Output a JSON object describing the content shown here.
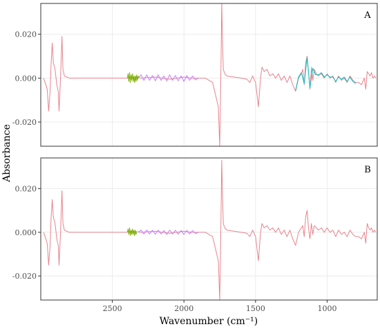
{
  "chart_data": [
    {
      "panel": "A",
      "type": "line",
      "xlabel": "Wavenumber (cm⁻¹)",
      "ylabel": "Absorbance",
      "x_reversed": true,
      "xlim": [
        3000,
        650
      ],
      "ylim": [
        -0.031,
        0.034
      ],
      "x_ticks": [
        2500,
        2000,
        1500,
        1000
      ],
      "x_tick_labels": [
        "2500",
        "2000",
        "1500",
        "1000"
      ],
      "y_ticks": [
        0.02,
        0.0,
        -0.02
      ],
      "y_tick_labels": [
        "0.020",
        "0.000",
        "-0.020"
      ],
      "grid": true,
      "series": [
        {
          "color": "#e8838d",
          "x": [
            2980,
            2965,
            2955,
            2945,
            2935,
            2928,
            2920,
            2912,
            2900,
            2888,
            2878,
            2872,
            2862,
            2852,
            2845,
            2835,
            2820,
            2800,
            2700,
            2500,
            2400,
            2350,
            2300,
            2200,
            2100,
            2000,
            1950,
            1900,
            1850,
            1800,
            1760,
            1750,
            1745,
            1740,
            1736,
            1730,
            1725,
            1715,
            1700,
            1650,
            1600,
            1560,
            1540,
            1520,
            1500,
            1480,
            1465,
            1455,
            1440,
            1420,
            1400,
            1380,
            1360,
            1340,
            1320,
            1300,
            1280,
            1260,
            1240,
            1220,
            1200,
            1180,
            1170,
            1160,
            1150,
            1140,
            1130,
            1120,
            1110,
            1100,
            1090,
            1075,
            1060,
            1040,
            1020,
            1000,
            980,
            960,
            940,
            920,
            900,
            880,
            860,
            840,
            820,
            800,
            780,
            760,
            740,
            730,
            720,
            710,
            700,
            690,
            680,
            670,
            660
          ],
          "y": [
            0.0,
            -0.003,
            -0.005,
            -0.015,
            -0.006,
            0.006,
            0.016,
            0.007,
            0.004,
            -0.003,
            -0.006,
            -0.015,
            0.0,
            0.019,
            0.004,
            0.001,
            0.0005,
            0.0,
            0.0,
            0.0,
            0.0,
            0.0005,
            0.0,
            0.0005,
            -0.0005,
            0.0005,
            0.0,
            0.0,
            0.0,
            -0.002,
            -0.013,
            -0.031,
            -0.01,
            0.012,
            0.034,
            0.015,
            0.004,
            0.002,
            0.001,
            0.0005,
            0.0,
            -0.0005,
            -0.002,
            0.001,
            -0.002,
            -0.013,
            0.0,
            0.005,
            0.003,
            0.004,
            0.001,
            0.002,
            0.0,
            0.002,
            -0.001,
            0.001,
            -0.002,
            0.001,
            -0.003,
            -0.006,
            0.0,
            0.002,
            0.004,
            -0.003,
            0.007,
            0.01,
            0.003,
            -0.005,
            0.005,
            -0.001,
            0.004,
            0.002,
            0.001,
            0.002,
            0.0,
            0.002,
            0.0,
            0.001,
            -0.002,
            0.001,
            -0.001,
            0.0,
            -0.002,
            0.001,
            -0.001,
            -0.002,
            -0.002,
            -0.003,
            0.0,
            -0.005,
            0.003,
            0.002,
            0.001,
            0.0025,
            0.0,
            0.001,
            0.0
          ]
        },
        {
          "color": "#7cae00",
          "x": [
            2395,
            2390,
            2385,
            2380,
            2375,
            2370,
            2365,
            2360,
            2355,
            2350,
            2345,
            2340,
            2335,
            2330,
            2325,
            2320,
            2315
          ],
          "y": [
            0.0,
            0.002,
            -0.0015,
            0.0025,
            -0.002,
            0.0015,
            -0.001,
            0.002,
            -0.0015,
            0.001,
            -0.002,
            0.001,
            -0.0015,
            0.0015,
            -0.001,
            0.001,
            0.0
          ]
        },
        {
          "color": "#c77cff",
          "x": [
            2320,
            2300,
            2280,
            2260,
            2240,
            2220,
            2200,
            2180,
            2160,
            2140,
            2120,
            2100,
            2080,
            2060,
            2040,
            2020,
            2000,
            1980,
            1960,
            1940,
            1920,
            1900
          ],
          "y": [
            0.0,
            0.0015,
            -0.001,
            0.0015,
            -0.001,
            0.0012,
            -0.0012,
            0.0015,
            -0.001,
            0.001,
            -0.0013,
            0.0015,
            -0.001,
            0.0012,
            -0.0012,
            0.001,
            -0.0015,
            0.0012,
            -0.001,
            0.001,
            -0.0008,
            0.0
          ]
        },
        {
          "color": "#00bfc4",
          "x": [
            1220,
            1200,
            1180,
            1160,
            1140,
            1120,
            1100,
            1080,
            1060,
            1040,
            1020,
            1000,
            980,
            960,
            940,
            920,
            900,
            880,
            860,
            840,
            820,
            800
          ],
          "y": [
            -0.0055,
            0.0005,
            0.0025,
            -0.0025,
            0.0095,
            -0.0045,
            0.0045,
            0.0015,
            0.0015,
            0.0025,
            0.0005,
            0.0015,
            0.0005,
            0.0005,
            -0.0015,
            0.0005,
            -0.0005,
            0.0005,
            -0.0015,
            0.0005,
            -0.0015,
            -0.0025
          ]
        }
      ]
    },
    {
      "panel": "B",
      "type": "line",
      "xlabel": "Wavenumber (cm⁻¹)",
      "ylabel": "Absorbance",
      "x_reversed": true,
      "xlim": [
        3000,
        650
      ],
      "ylim": [
        -0.031,
        0.034
      ],
      "x_ticks": [
        2500,
        2000,
        1500,
        1000
      ],
      "x_tick_labels": [
        "2500",
        "2000",
        "1500",
        "1000"
      ],
      "y_ticks": [
        0.02,
        0.0,
        -0.02
      ],
      "y_tick_labels": [
        "0.020",
        "0.000",
        "-0.020"
      ],
      "grid": true,
      "series": [
        {
          "color": "#e8838d",
          "x": [
            2980,
            2965,
            2955,
            2945,
            2935,
            2928,
            2920,
            2912,
            2900,
            2888,
            2878,
            2872,
            2862,
            2852,
            2845,
            2835,
            2820,
            2800,
            2700,
            2500,
            2400,
            2350,
            2300,
            2200,
            2100,
            2000,
            1950,
            1900,
            1850,
            1800,
            1760,
            1750,
            1745,
            1740,
            1736,
            1730,
            1725,
            1715,
            1700,
            1650,
            1600,
            1560,
            1540,
            1520,
            1500,
            1480,
            1465,
            1455,
            1440,
            1420,
            1400,
            1380,
            1360,
            1340,
            1320,
            1300,
            1280,
            1260,
            1240,
            1220,
            1200,
            1180,
            1170,
            1160,
            1150,
            1140,
            1130,
            1120,
            1110,
            1100,
            1090,
            1075,
            1060,
            1040,
            1020,
            1000,
            980,
            960,
            940,
            920,
            900,
            880,
            860,
            840,
            820,
            800,
            780,
            760,
            740,
            730,
            720,
            710,
            700,
            690,
            680,
            670,
            660
          ],
          "y": [
            0.0,
            -0.003,
            -0.005,
            -0.015,
            -0.006,
            0.006,
            0.015,
            0.007,
            0.004,
            -0.003,
            -0.006,
            -0.015,
            0.0,
            0.019,
            0.004,
            0.001,
            0.0005,
            0.0,
            0.0,
            0.0,
            0.0,
            0.0005,
            0.0,
            0.0005,
            -0.0005,
            0.0005,
            0.0,
            0.0,
            0.0,
            -0.002,
            -0.013,
            -0.031,
            -0.01,
            0.012,
            0.033,
            0.015,
            0.004,
            0.002,
            0.001,
            0.0005,
            0.0,
            -0.0005,
            -0.002,
            0.001,
            -0.002,
            -0.013,
            0.0,
            0.004,
            0.002,
            0.003,
            0.001,
            0.002,
            0.0,
            0.002,
            -0.001,
            0.001,
            -0.002,
            0.001,
            -0.003,
            -0.006,
            0.0,
            0.002,
            0.003,
            -0.002,
            0.007,
            0.01,
            0.002,
            -0.003,
            0.004,
            -0.001,
            0.003,
            0.002,
            0.001,
            0.002,
            0.0,
            0.002,
            0.0,
            0.001,
            -0.002,
            0.001,
            -0.001,
            0.0,
            -0.002,
            0.001,
            -0.001,
            -0.002,
            -0.002,
            -0.003,
            0.0,
            -0.005,
            0.004,
            0.002,
            0.001,
            0.002,
            0.0,
            0.001,
            0.0
          ]
        },
        {
          "color": "#7cae00",
          "x": [
            2395,
            2390,
            2385,
            2380,
            2375,
            2370,
            2365,
            2360,
            2355,
            2350,
            2345,
            2340,
            2335,
            2330
          ],
          "y": [
            0.0,
            0.0015,
            -0.001,
            0.002,
            -0.0015,
            0.001,
            -0.001,
            0.0015,
            -0.001,
            0.001,
            -0.0015,
            0.001,
            -0.001,
            0.0
          ]
        },
        {
          "color": "#c77cff",
          "x": [
            2320,
            2300,
            2280,
            2260,
            2240,
            2220,
            2200,
            2180,
            2160,
            2140,
            2120,
            2100,
            2080,
            2060,
            2040,
            2020,
            2000,
            1980,
            1960,
            1940,
            1920,
            1900
          ],
          "y": [
            0.0,
            0.001,
            -0.0008,
            0.001,
            -0.0008,
            0.0009,
            -0.0009,
            0.001,
            -0.0008,
            0.0008,
            -0.001,
            0.001,
            -0.0008,
            0.0009,
            -0.0009,
            0.0008,
            -0.001,
            0.0009,
            -0.0008,
            0.0008,
            -0.0006,
            0.0
          ]
        }
      ]
    }
  ]
}
